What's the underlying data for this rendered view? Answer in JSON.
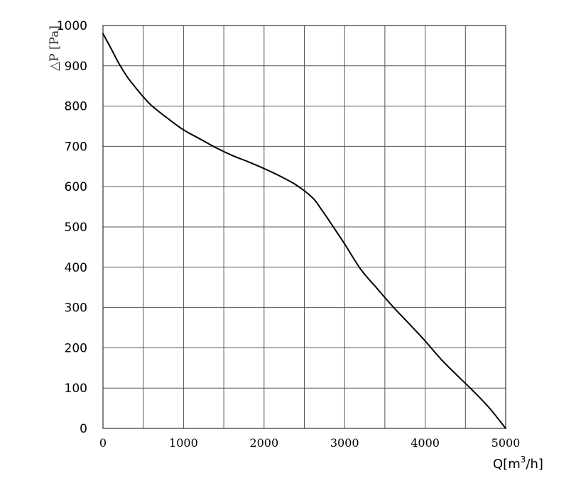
{
  "chart_data": {
    "type": "line",
    "title": "",
    "xlabel": "Q[m³/h]",
    "xlabel_main": "Q[m",
    "xlabel_sup": "3",
    "xlabel_tail": "/h]",
    "ylabel": "△P [Pa]",
    "xlim": [
      0,
      5000
    ],
    "ylim": [
      0,
      1000
    ],
    "x_ticks": [
      0,
      500,
      1000,
      1500,
      2000,
      2500,
      3000,
      3500,
      4000,
      4500,
      5000
    ],
    "x_tick_labels": [
      "0",
      "1000",
      "2000",
      "3000",
      "4000",
      "5000"
    ],
    "x_tick_label_values": [
      0,
      1000,
      2000,
      3000,
      4000,
      5000
    ],
    "y_ticks": [
      0,
      100,
      200,
      300,
      400,
      500,
      600,
      700,
      800,
      900,
      1000
    ],
    "y_tick_labels": [
      "0",
      "100",
      "200",
      "300",
      "400",
      "500",
      "600",
      "700",
      "800",
      "900",
      "1000"
    ],
    "grid": true,
    "series": [
      {
        "color": "#000000",
        "x": [
          0,
          100,
          200,
          300,
          400,
          500,
          600,
          800,
          1000,
          1200,
          1400,
          1600,
          1800,
          2000,
          2200,
          2400,
          2600,
          2700,
          2800,
          2900,
          3000,
          3200,
          3400,
          3600,
          3800,
          4000,
          4200,
          4400,
          4600,
          4800,
          5000
        ],
        "y": [
          980,
          943,
          905,
          873,
          847,
          823,
          802,
          770,
          741,
          719,
          697,
          678,
          662,
          645,
          626,
          604,
          573,
          547,
          518,
          488,
          458,
          395,
          348,
          302,
          260,
          217,
          171,
          131,
          92,
          50,
          0
        ]
      }
    ]
  }
}
